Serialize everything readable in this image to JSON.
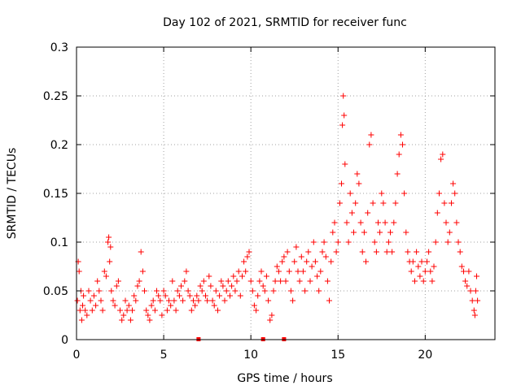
{
  "chart_data": {
    "type": "scatter",
    "title": "Day 102 of 2021, SRMTID for receiver func",
    "xlabel": "GPS time / hours",
    "ylabel": "SRMTID / TECUs",
    "xlim": [
      0,
      24
    ],
    "ylim": [
      0,
      0.3
    ],
    "xticks": [
      0,
      5,
      10,
      15,
      20
    ],
    "xtick_labels": [
      "0",
      "5",
      "10",
      "15",
      "20"
    ],
    "yticks": [
      0,
      0.05,
      0.1,
      0.15,
      0.2,
      0.25,
      0.3
    ],
    "ytick_labels": [
      "0",
      "0.05",
      "0.1",
      "0.15",
      "0.2",
      "0.25",
      "0.3"
    ],
    "grid": true,
    "marker": "+",
    "color": "#ff0000",
    "series": [
      {
        "name": "SRMTID",
        "points": [
          [
            0.05,
            0.04
          ],
          [
            0.1,
            0.08
          ],
          [
            0.15,
            0.07
          ],
          [
            0.2,
            0.03
          ],
          [
            0.25,
            0.05
          ],
          [
            0.3,
            0.02
          ],
          [
            0.35,
            0.035
          ],
          [
            0.4,
            0.045
          ],
          [
            0.5,
            0.03
          ],
          [
            0.6,
            0.025
          ],
          [
            0.7,
            0.05
          ],
          [
            0.8,
            0.04
          ],
          [
            0.9,
            0.03
          ],
          [
            1.0,
            0.045
          ],
          [
            1.1,
            0.035
          ],
          [
            1.2,
            0.06
          ],
          [
            1.3,
            0.05
          ],
          [
            1.4,
            0.04
          ],
          [
            1.5,
            0.03
          ],
          [
            1.6,
            0.07
          ],
          [
            1.7,
            0.065
          ],
          [
            1.8,
            0.1
          ],
          [
            1.85,
            0.105
          ],
          [
            1.9,
            0.08
          ],
          [
            1.95,
            0.095
          ],
          [
            2.0,
            0.05
          ],
          [
            2.1,
            0.04
          ],
          [
            2.2,
            0.035
          ],
          [
            2.3,
            0.055
          ],
          [
            2.4,
            0.06
          ],
          [
            2.5,
            0.03
          ],
          [
            2.6,
            0.02
          ],
          [
            2.7,
            0.025
          ],
          [
            2.8,
            0.04
          ],
          [
            2.9,
            0.03
          ],
          [
            3.0,
            0.035
          ],
          [
            3.1,
            0.02
          ],
          [
            3.2,
            0.03
          ],
          [
            3.3,
            0.045
          ],
          [
            3.4,
            0.04
          ],
          [
            3.5,
            0.055
          ],
          [
            3.6,
            0.06
          ],
          [
            3.7,
            0.09
          ],
          [
            3.8,
            0.07
          ],
          [
            3.9,
            0.05
          ],
          [
            4.0,
            0.03
          ],
          [
            4.1,
            0.025
          ],
          [
            4.2,
            0.02
          ],
          [
            4.3,
            0.035
          ],
          [
            4.4,
            0.04
          ],
          [
            4.5,
            0.03
          ],
          [
            4.6,
            0.05
          ],
          [
            4.7,
            0.045
          ],
          [
            4.8,
            0.04
          ],
          [
            4.9,
            0.025
          ],
          [
            5.0,
            0.05
          ],
          [
            5.1,
            0.045
          ],
          [
            5.2,
            0.03
          ],
          [
            5.3,
            0.04
          ],
          [
            5.4,
            0.035
          ],
          [
            5.5,
            0.06
          ],
          [
            5.6,
            0.04
          ],
          [
            5.7,
            0.03
          ],
          [
            5.8,
            0.05
          ],
          [
            5.9,
            0.045
          ],
          [
            6.0,
            0.055
          ],
          [
            6.1,
            0.04
          ],
          [
            6.2,
            0.06
          ],
          [
            6.3,
            0.07
          ],
          [
            6.4,
            0.05
          ],
          [
            6.5,
            0.045
          ],
          [
            6.6,
            0.03
          ],
          [
            6.7,
            0.04
          ],
          [
            6.8,
            0.035
          ],
          [
            6.9,
            0.045
          ],
          [
            7.0,
            0.04
          ],
          [
            7.1,
            0.055
          ],
          [
            7.2,
            0.05
          ],
          [
            7.3,
            0.06
          ],
          [
            7.4,
            0.045
          ],
          [
            7.5,
            0.04
          ],
          [
            7.6,
            0.065
          ],
          [
            7.7,
            0.055
          ],
          [
            7.8,
            0.04
          ],
          [
            7.9,
            0.035
          ],
          [
            8.0,
            0.05
          ],
          [
            8.1,
            0.03
          ],
          [
            8.2,
            0.045
          ],
          [
            8.3,
            0.06
          ],
          [
            8.4,
            0.055
          ],
          [
            8.5,
            0.04
          ],
          [
            8.6,
            0.05
          ],
          [
            8.7,
            0.06
          ],
          [
            8.8,
            0.045
          ],
          [
            8.9,
            0.055
          ],
          [
            9.0,
            0.065
          ],
          [
            9.1,
            0.05
          ],
          [
            9.2,
            0.06
          ],
          [
            9.3,
            0.07
          ],
          [
            9.4,
            0.045
          ],
          [
            9.5,
            0.065
          ],
          [
            9.6,
            0.08
          ],
          [
            9.7,
            0.07
          ],
          [
            9.8,
            0.085
          ],
          [
            9.9,
            0.09
          ],
          [
            10.0,
            0.06
          ],
          [
            10.1,
            0.05
          ],
          [
            10.2,
            0.035
          ],
          [
            10.3,
            0.03
          ],
          [
            10.4,
            0.045
          ],
          [
            10.5,
            0.06
          ],
          [
            10.6,
            0.07
          ],
          [
            10.7,
            0.055
          ],
          [
            10.8,
            0.05
          ],
          [
            10.9,
            0.065
          ],
          [
            11.0,
            0.04
          ],
          [
            11.1,
            0.02
          ],
          [
            11.2,
            0.025
          ],
          [
            11.3,
            0.05
          ],
          [
            11.4,
            0.06
          ],
          [
            11.5,
            0.075
          ],
          [
            11.6,
            0.07
          ],
          [
            11.7,
            0.06
          ],
          [
            11.8,
            0.08
          ],
          [
            11.9,
            0.085
          ],
          [
            12.0,
            0.06
          ],
          [
            12.1,
            0.09
          ],
          [
            12.2,
            0.07
          ],
          [
            12.3,
            0.05
          ],
          [
            12.4,
            0.04
          ],
          [
            12.5,
            0.08
          ],
          [
            12.6,
            0.095
          ],
          [
            12.7,
            0.07
          ],
          [
            12.8,
            0.06
          ],
          [
            12.9,
            0.085
          ],
          [
            13.0,
            0.07
          ],
          [
            13.1,
            0.05
          ],
          [
            13.2,
            0.08
          ],
          [
            13.3,
            0.09
          ],
          [
            13.4,
            0.06
          ],
          [
            13.5,
            0.075
          ],
          [
            13.6,
            0.1
          ],
          [
            13.7,
            0.08
          ],
          [
            13.8,
            0.065
          ],
          [
            13.9,
            0.05
          ],
          [
            14.0,
            0.07
          ],
          [
            14.1,
            0.09
          ],
          [
            14.2,
            0.1
          ],
          [
            14.3,
            0.085
          ],
          [
            14.4,
            0.06
          ],
          [
            14.5,
            0.04
          ],
          [
            14.6,
            0.08
          ],
          [
            14.7,
            0.11
          ],
          [
            14.8,
            0.12
          ],
          [
            14.9,
            0.09
          ],
          [
            15.0,
            0.1
          ],
          [
            15.1,
            0.14
          ],
          [
            15.2,
            0.16
          ],
          [
            15.25,
            0.22
          ],
          [
            15.3,
            0.25
          ],
          [
            15.35,
            0.23
          ],
          [
            15.4,
            0.18
          ],
          [
            15.5,
            0.12
          ],
          [
            15.6,
            0.1
          ],
          [
            15.7,
            0.15
          ],
          [
            15.8,
            0.13
          ],
          [
            15.9,
            0.11
          ],
          [
            16.0,
            0.14
          ],
          [
            16.1,
            0.17
          ],
          [
            16.2,
            0.16
          ],
          [
            16.3,
            0.12
          ],
          [
            16.4,
            0.09
          ],
          [
            16.5,
            0.11
          ],
          [
            16.6,
            0.08
          ],
          [
            16.7,
            0.13
          ],
          [
            16.8,
            0.2
          ],
          [
            16.9,
            0.21
          ],
          [
            17.0,
            0.14
          ],
          [
            17.1,
            0.1
          ],
          [
            17.2,
            0.09
          ],
          [
            17.3,
            0.12
          ],
          [
            17.4,
            0.11
          ],
          [
            17.5,
            0.15
          ],
          [
            17.6,
            0.14
          ],
          [
            17.7,
            0.12
          ],
          [
            17.8,
            0.09
          ],
          [
            17.9,
            0.1
          ],
          [
            18.0,
            0.11
          ],
          [
            18.1,
            0.09
          ],
          [
            18.2,
            0.12
          ],
          [
            18.3,
            0.14
          ],
          [
            18.4,
            0.17
          ],
          [
            18.5,
            0.19
          ],
          [
            18.6,
            0.21
          ],
          [
            18.7,
            0.2
          ],
          [
            18.8,
            0.15
          ],
          [
            18.9,
            0.11
          ],
          [
            19.0,
            0.09
          ],
          [
            19.1,
            0.08
          ],
          [
            19.2,
            0.07
          ],
          [
            19.3,
            0.08
          ],
          [
            19.4,
            0.06
          ],
          [
            19.5,
            0.09
          ],
          [
            19.6,
            0.075
          ],
          [
            19.7,
            0.065
          ],
          [
            19.8,
            0.08
          ],
          [
            19.9,
            0.06
          ],
          [
            20.0,
            0.07
          ],
          [
            20.1,
            0.08
          ],
          [
            20.2,
            0.09
          ],
          [
            20.3,
            0.07
          ],
          [
            20.4,
            0.06
          ],
          [
            20.5,
            0.075
          ],
          [
            20.6,
            0.1
          ],
          [
            20.7,
            0.13
          ],
          [
            20.8,
            0.15
          ],
          [
            20.9,
            0.185
          ],
          [
            21.0,
            0.19
          ],
          [
            21.1,
            0.14
          ],
          [
            21.2,
            0.12
          ],
          [
            21.3,
            0.1
          ],
          [
            21.4,
            0.11
          ],
          [
            21.5,
            0.14
          ],
          [
            21.6,
            0.16
          ],
          [
            21.7,
            0.15
          ],
          [
            21.8,
            0.12
          ],
          [
            21.9,
            0.1
          ],
          [
            22.0,
            0.09
          ],
          [
            22.1,
            0.075
          ],
          [
            22.2,
            0.07
          ],
          [
            22.3,
            0.06
          ],
          [
            22.4,
            0.055
          ],
          [
            22.5,
            0.07
          ],
          [
            22.6,
            0.05
          ],
          [
            22.7,
            0.04
          ],
          [
            22.8,
            0.03
          ],
          [
            22.85,
            0.025
          ],
          [
            22.9,
            0.05
          ],
          [
            22.95,
            0.065
          ],
          [
            23.0,
            0.04
          ]
        ]
      }
    ],
    "baseline_markers_x": [
      7.0,
      10.7,
      11.9
    ]
  }
}
